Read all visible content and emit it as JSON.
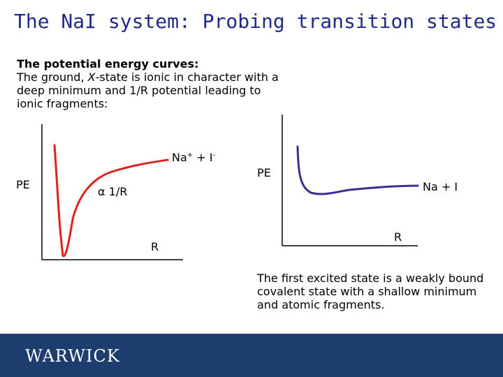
{
  "title": "The NaI system: Probing transition states",
  "intro": {
    "heading": "The potential energy curves:",
    "line_before_x": "The ground, ",
    "x_state": "X",
    "line_after_x": "-state is ionic in character with a deep minimum and 1/R potential leading to ionic fragments:"
  },
  "ground_plot": {
    "y_label": "PE",
    "x_label": "R",
    "asymptote_label": {
      "base1": "Na",
      "sup1": "+",
      "mid": " + I",
      "sup2": "-"
    },
    "potential_label": {
      "symbol": "α",
      "text": " 1/R"
    },
    "curve_color": "#e0211d"
  },
  "excited_plot": {
    "y_label": "PE",
    "x_label": "R",
    "asymptote_label": "Na + I",
    "curve_color": "#3b2f8f"
  },
  "caption": "The first excited state is a weakly bound covalent state with a shallow minimum and atomic fragments.",
  "footer": {
    "logo": "WARWICK",
    "color": "#1c3d6e"
  }
}
